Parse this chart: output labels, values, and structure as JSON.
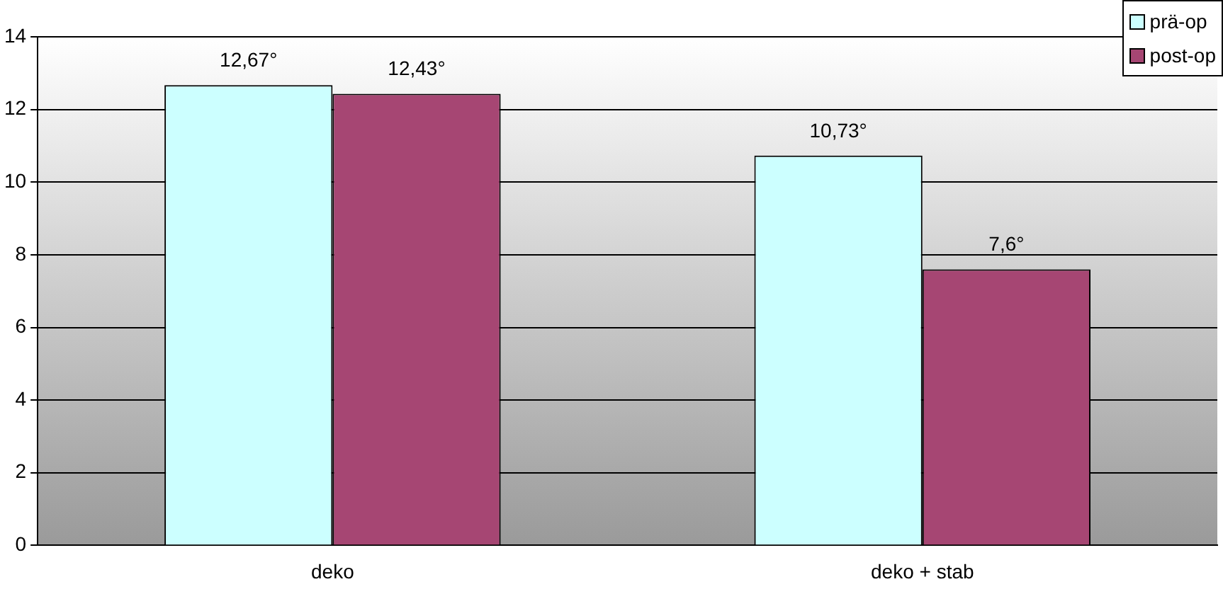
{
  "chart_data": {
    "type": "bar",
    "categories": [
      "deko",
      "deko + stab"
    ],
    "series": [
      {
        "name": "prä-op",
        "color": "#ccffff",
        "values": [
          12.67,
          10.73
        ],
        "value_labels": [
          "12,67°",
          "10,73°"
        ]
      },
      {
        "name": "post-op",
        "color": "#a64673",
        "values": [
          12.43,
          7.6
        ],
        "value_labels": [
          "12,43°",
          "7,6°"
        ]
      }
    ],
    "ylim": [
      0,
      14
    ],
    "yticks": [
      0,
      2,
      4,
      6,
      8,
      10,
      12,
      14
    ],
    "grid": "y",
    "legend": "top right"
  }
}
